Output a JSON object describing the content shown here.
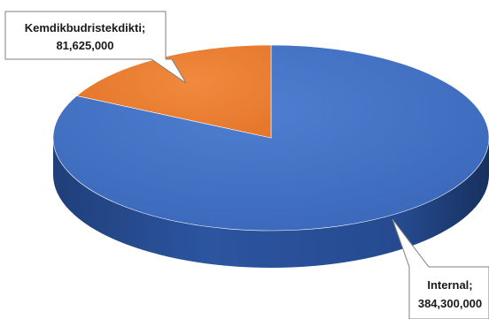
{
  "chart_data": {
    "type": "pie",
    "title": "",
    "slices": [
      {
        "label": "Internal",
        "value": 384300000,
        "display_value": "384,300,000",
        "color": "#4472C4"
      },
      {
        "label": "Kemdikbudristekdikti",
        "value": 81625000,
        "display_value": "81,625,000",
        "color": "#ED7D31"
      }
    ],
    "data_labels": [
      {
        "line1": "Kemdikbudristekdikti;",
        "line2": "81,625,000"
      },
      {
        "line1": "Internal;",
        "line2": "384,300,000"
      }
    ],
    "legend": "none",
    "style": "3d"
  }
}
